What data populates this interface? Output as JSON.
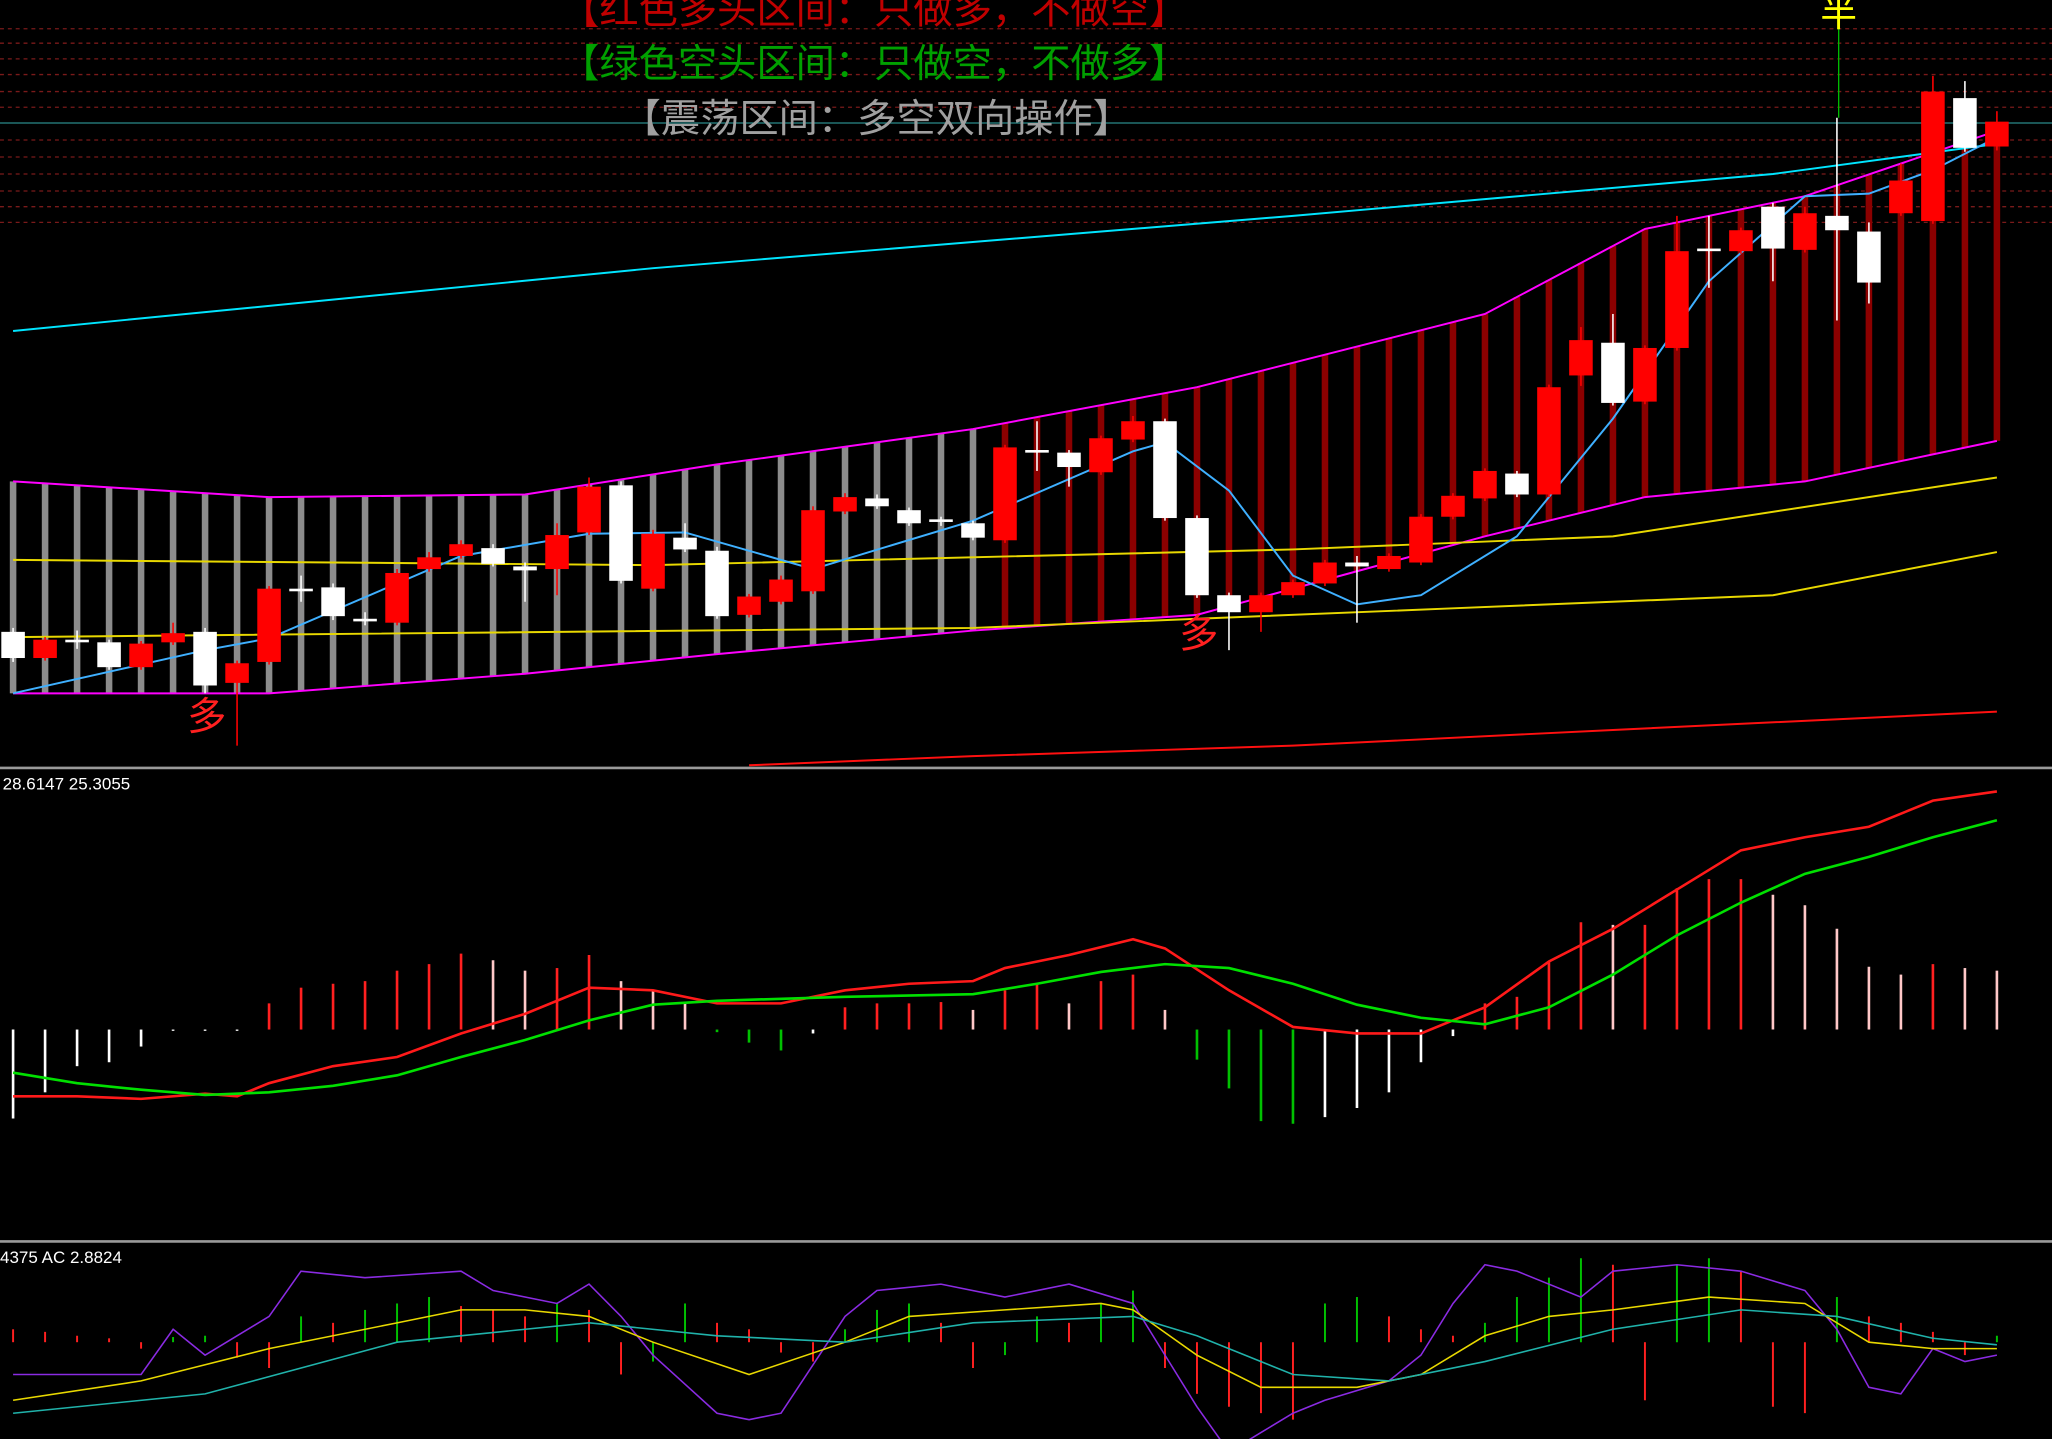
{
  "banner": [
    {
      "text": "【红色多头区间：只做多，不做空】",
      "color": "#c00000"
    },
    {
      "text": "【绿色空头区间：只做空，不做多】",
      "color": "#00a000"
    },
    {
      "text": "【震荡区间：多空双向操作】",
      "color": "#a0a0a0"
    }
  ],
  "markers": [
    {
      "text": "多",
      "color": "#ff2020"
    },
    {
      "text": "多",
      "color": "#ff2020"
    },
    {
      "text": "半",
      "color": "#ffff00"
    }
  ],
  "chart_data": [
    {
      "type": "candlestick",
      "categories": [
        null,
        null,
        null,
        null,
        null,
        null,
        null,
        null,
        null,
        null,
        null,
        null,
        null,
        null,
        null,
        null,
        null,
        null,
        null,
        null,
        null,
        null,
        null,
        null,
        null,
        null,
        null,
        null,
        null,
        null,
        null,
        null,
        null,
        null,
        null,
        null,
        null,
        null,
        null,
        null,
        null,
        null,
        null,
        null,
        null,
        null,
        null,
        null,
        null,
        null,
        null,
        null,
        null,
        null,
        null,
        null,
        null,
        null,
        null,
        null,
        null,
        null,
        null
      ],
      "open": [
        102,
        82,
        96,
        94,
        75,
        94,
        102,
        63,
        79,
        135,
        136,
        112,
        109,
        150,
        160,
        166,
        152,
        150,
        178,
        214,
        135,
        174,
        164,
        115,
        125,
        133,
        194,
        204,
        195,
        188,
        185,
        172,
        241,
        239,
        224,
        249,
        263,
        189,
        130,
        117,
        130,
        139,
        155,
        150,
        155,
        190,
        204,
        223,
        207,
        298,
        323,
        278,
        319,
        395,
        393,
        427,
        394,
        420,
        408,
        422,
        416,
        510,
        473
      ],
      "high": [
        105,
        98,
        103,
        96,
        95,
        109,
        105,
        80,
        137,
        145,
        139,
        117,
        150,
        163,
        172,
        169,
        155,
        185,
        220,
        217,
        180,
        185,
        167,
        131,
        145,
        198,
        208,
        207,
        197,
        190,
        187,
        245,
        263,
        241,
        252,
        267,
        265,
        191,
        132,
        132,
        142,
        157,
        160,
        162,
        192,
        208,
        227,
        225,
        291,
        335,
        345,
        321,
        420,
        420,
        411,
        430,
        427,
        495,
        415,
        460,
        527,
        523,
        500
      ],
      "low": [
        79,
        80,
        89,
        73,
        73,
        92,
        55,
        15,
        77,
        125,
        111,
        107,
        107,
        148,
        158,
        152,
        125,
        130,
        176,
        139,
        133,
        163,
        112,
        113,
        123,
        131,
        192,
        196,
        183,
        183,
        172,
        170,
        225,
        213,
        222,
        247,
        187,
        128,
        88,
        102,
        128,
        137,
        109,
        148,
        153,
        188,
        202,
        205,
        205,
        290,
        275,
        276,
        317,
        365,
        391,
        370,
        392,
        340,
        353,
        420,
        414,
        469,
        470
      ],
      "close": [
        82,
        96,
        94,
        75,
        93,
        101,
        61,
        78,
        135,
        133,
        114,
        110,
        147,
        159,
        169,
        154,
        149,
        176,
        213,
        141,
        177,
        165,
        114,
        129,
        142,
        195,
        205,
        198,
        185,
        186,
        174,
        243,
        239,
        228,
        250,
        263,
        189,
        130,
        117,
        130,
        140,
        155,
        152,
        160,
        190,
        206,
        225,
        207,
        289,
        325,
        277,
        319,
        393,
        393,
        409,
        395,
        422,
        409,
        369,
        447,
        515,
        472,
        492
      ],
      "up_color": "#ff0000",
      "down_color": "#ffffff",
      "ylim": [
        0,
        585
      ],
      "band": {
        "color": "#ff00ff",
        "column_colors": [
          "#8c8c8c",
          "#8b0000"
        ],
        "upper": {
          "x": [
            0,
            8,
            16,
            22,
            30,
            37,
            46,
            51,
            56,
            62
          ],
          "values": [
            217,
            205,
            207,
            230,
            257,
            289,
            345,
            410,
            435,
            485
          ]
        },
        "lower": {
          "x": [
            0,
            8,
            16,
            22,
            30,
            37,
            46,
            51,
            56,
            62
          ],
          "values": [
            55,
            55,
            70,
            85,
            103,
            115,
            175,
            205,
            217,
            248
          ]
        }
      },
      "overlays": [
        {
          "color": "#00e5ff",
          "x": [
            0,
            20,
            40,
            55,
            62
          ],
          "values": [
            332,
            380,
            420,
            452,
            475
          ]
        },
        {
          "color": "#ff1010",
          "x": [
            23,
            30,
            40,
            50,
            62
          ],
          "values": [
            0,
            7,
            15,
            27,
            41
          ]
        },
        {
          "color": "#e8d800",
          "x": [
            0,
            20,
            40,
            50,
            62
          ],
          "values": [
            157,
            153,
            165,
            175,
            220
          ]
        },
        {
          "color": "#e8d800",
          "x": [
            0,
            30,
            45,
            55,
            62
          ],
          "values": [
            98,
            105,
            120,
            130,
            163
          ]
        },
        {
          "color": "#3fb0ff",
          "x": [
            0,
            6,
            8,
            14,
            18,
            21,
            25,
            30,
            35,
            36,
            38,
            40,
            42,
            44,
            47,
            50,
            53,
            56,
            58,
            60,
            62
          ],
          "values": [
            55,
            88,
            97,
            160,
            177,
            178,
            150,
            187,
            240,
            247,
            210,
            145,
            123,
            130,
            175,
            265,
            370,
            435,
            437,
            455,
            480
          ]
        }
      ]
    },
    {
      "type": "macd",
      "label": "28.6147 25.3055",
      "categories": [
        null,
        null,
        null,
        null,
        null,
        null,
        null,
        null,
        null,
        null,
        null,
        null,
        null,
        null,
        null,
        null,
        null,
        null,
        null,
        null,
        null,
        null,
        null,
        null,
        null,
        null,
        null,
        null,
        null,
        null,
        null,
        null,
        null,
        null,
        null,
        null,
        null,
        null,
        null,
        null,
        null,
        null,
        null,
        null,
        null,
        null,
        null,
        null,
        null,
        null,
        null,
        null,
        null,
        null,
        null,
        null,
        null,
        null,
        null,
        null,
        null,
        null,
        null
      ],
      "values": [
        -68,
        -48,
        -28,
        -25,
        -13,
        -1,
        -1,
        -1,
        20,
        32,
        35,
        37,
        45,
        50,
        58,
        53,
        45,
        47,
        57,
        37,
        30,
        20,
        -2,
        -10,
        -16,
        -3,
        17,
        20,
        20,
        21,
        15,
        30,
        35,
        20,
        37,
        42,
        15,
        -23,
        -45,
        -70,
        -72,
        -67,
        -60,
        -48,
        -25,
        -5,
        20,
        25,
        52,
        82,
        80,
        80,
        108,
        115,
        115,
        103,
        95,
        77,
        48,
        42,
        50,
        47,
        45
      ],
      "colors": {
        "pos_rise": "#ff2020",
        "pos_fall": "#ffc8c8",
        "neg_fall": "#00c000",
        "neg_rise": "#ffffff"
      },
      "ylim": [
        -161,
        197
      ],
      "series": [
        {
          "color": "#ff1a1a",
          "x": [
            0,
            2,
            4,
            6,
            7,
            8,
            10,
            12,
            14,
            16,
            18,
            20,
            22,
            24,
            26,
            28,
            30,
            31,
            33,
            35,
            36,
            38,
            40,
            42,
            44,
            46,
            48,
            50,
            52,
            54,
            56,
            58,
            60,
            62
          ],
          "values": [
            -51,
            -51,
            -53,
            -49,
            -51,
            -41,
            -28,
            -21,
            -3,
            12,
            32,
            30,
            20,
            20,
            30,
            35,
            37,
            47,
            57,
            69,
            62,
            30,
            2,
            -3,
            -3,
            17,
            52,
            77,
            107,
            137,
            147,
            155,
            175,
            182
          ]
        },
        {
          "color": "#00e000",
          "x": [
            0,
            2,
            4,
            6,
            8,
            10,
            12,
            14,
            16,
            18,
            20,
            22,
            26,
            30,
            32,
            34,
            36,
            38,
            40,
            42,
            44,
            46,
            48,
            50,
            52,
            54,
            56,
            58,
            60,
            62
          ],
          "values": [
            -33,
            -41,
            -46,
            -50,
            -48,
            -43,
            -35,
            -21,
            -8,
            7,
            19,
            22,
            25,
            27,
            35,
            44,
            50,
            47,
            35,
            19,
            9,
            4,
            17,
            42,
            72,
            97,
            119,
            132,
            147,
            160
          ]
        }
      ]
    },
    {
      "type": "ac",
      "label": "4375 AC 2.8824",
      "categories": [
        null,
        null,
        null,
        null,
        null,
        null,
        null,
        null,
        null,
        null,
        null,
        null,
        null,
        null,
        null,
        null,
        null,
        null,
        null,
        null,
        null,
        null,
        null,
        null,
        null,
        null,
        null,
        null,
        null,
        null,
        null,
        null,
        null,
        null,
        null,
        null,
        null,
        null,
        null,
        null,
        null,
        null,
        null,
        null,
        null,
        null,
        null,
        null,
        null,
        null,
        null,
        null,
        null,
        null,
        null,
        null,
        null,
        null,
        null,
        null,
        null,
        null,
        null
      ],
      "values": [
        10,
        8,
        5,
        3,
        -5,
        4,
        5,
        -12,
        -20,
        20,
        15,
        25,
        30,
        35,
        28,
        25,
        20,
        30,
        25,
        -25,
        -15,
        30,
        15,
        10,
        -8,
        -15,
        10,
        25,
        30,
        15,
        -20,
        -10,
        20,
        15,
        30,
        40,
        -20,
        -40,
        -50,
        -55,
        -60,
        30,
        35,
        20,
        10,
        5,
        15,
        35,
        50,
        65,
        60,
        -45,
        60,
        65,
        55,
        -50,
        -55,
        35,
        20,
        15,
        8,
        -10,
        5
      ],
      "colors": {
        "up": "#00c000",
        "down": "#ff2020"
      },
      "ylim": [
        -75,
        75
      ],
      "series": [
        {
          "color": "#8a2be2",
          "x": [
            0,
            4,
            5,
            6,
            8,
            9,
            11,
            14,
            15,
            17,
            18,
            19,
            20,
            22,
            23,
            24,
            26,
            27,
            29,
            31,
            33,
            35,
            36,
            37,
            38,
            39,
            40,
            41,
            43,
            44,
            45,
            46,
            47,
            49,
            50,
            52,
            54,
            56,
            57,
            58,
            59,
            60,
            61,
            62
          ],
          "values": [
            -25,
            -25,
            10,
            -10,
            20,
            55,
            50,
            55,
            40,
            30,
            45,
            20,
            -10,
            -55,
            -60,
            -55,
            20,
            40,
            45,
            35,
            45,
            30,
            -10,
            -50,
            -85,
            -70,
            -55,
            -45,
            -30,
            -10,
            30,
            60,
            55,
            35,
            55,
            60,
            55,
            40,
            10,
            -35,
            -40,
            -5,
            -15,
            -10
          ]
        },
        {
          "color": "#e8d800",
          "x": [
            0,
            4,
            8,
            12,
            14,
            16,
            18,
            20,
            23,
            26,
            28,
            31,
            34,
            35,
            37,
            39,
            42,
            44,
            46,
            48,
            50,
            53,
            56,
            58,
            60,
            62
          ],
          "values": [
            -45,
            -30,
            -5,
            15,
            25,
            25,
            20,
            0,
            -25,
            0,
            20,
            25,
            30,
            25,
            -10,
            -35,
            -35,
            -25,
            5,
            20,
            25,
            35,
            30,
            0,
            -5,
            -5
          ]
        },
        {
          "color": "#20b2aa",
          "x": [
            0,
            6,
            12,
            18,
            22,
            26,
            30,
            35,
            37,
            40,
            43,
            46,
            50,
            54,
            57,
            60,
            62
          ],
          "values": [
            -55,
            -40,
            0,
            15,
            5,
            0,
            15,
            20,
            5,
            -25,
            -30,
            -15,
            10,
            25,
            20,
            3,
            -2
          ]
        }
      ]
    }
  ]
}
